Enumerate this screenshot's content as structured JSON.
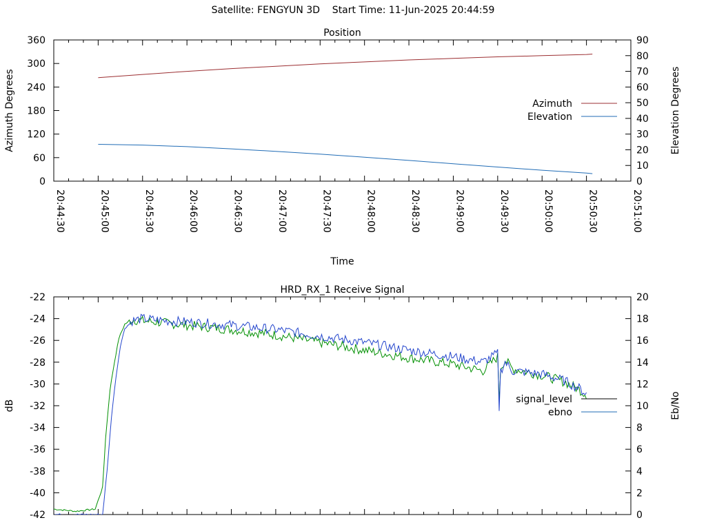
{
  "header": {
    "title": "Satellite: FENGYUN 3D    Start Time: 11-Jun-2025 20:44:59"
  },
  "colors": {
    "azimuth": "#9b2d30",
    "elevation": "#1f6bb5",
    "signal_level": "#008f00",
    "ebno": "#2244cc",
    "legend_signal_level": "#000000",
    "legend_ebno": "#1f6bb5"
  },
  "chart_data": [
    {
      "type": "line",
      "title": "Position",
      "xlabel": "Time",
      "ylabel": "Azimuth Degrees",
      "y2label": "Elevation Degrees",
      "ylim": [
        0,
        360
      ],
      "y2lim": [
        0,
        90
      ],
      "yticks": [
        0,
        60,
        120,
        180,
        240,
        300,
        360
      ],
      "y2ticks": [
        0,
        10,
        20,
        30,
        40,
        50,
        60,
        70,
        80,
        90
      ],
      "xlim": [
        "20:44:30",
        "20:51:00"
      ],
      "xticks": [
        "20:44:30",
        "20:45:00",
        "20:45:30",
        "20:46:00",
        "20:46:30",
        "20:47:00",
        "20:47:30",
        "20:48:00",
        "20:48:30",
        "20:49:00",
        "20:49:30",
        "20:50:00",
        "20:50:30",
        "20:51:00"
      ],
      "legend_position": "center-right",
      "series": [
        {
          "name": "Azimuth",
          "axis": "left",
          "color_key": "azimuth",
          "x": [
            "20:45:00",
            "20:45:30",
            "20:46:00",
            "20:46:30",
            "20:47:00",
            "20:47:30",
            "20:48:00",
            "20:48:30",
            "20:49:00",
            "20:49:30",
            "20:50:00",
            "20:50:30",
            "20:50:34"
          ],
          "y": [
            264,
            272,
            280,
            287,
            293,
            299,
            304,
            309,
            313,
            317,
            320,
            323,
            324
          ]
        },
        {
          "name": "Elevation",
          "axis": "right",
          "color_key": "elevation",
          "x": [
            "20:45:00",
            "20:45:30",
            "20:46:00",
            "20:46:30",
            "20:47:00",
            "20:47:30",
            "20:48:00",
            "20:48:30",
            "20:49:00",
            "20:49:30",
            "20:50:00",
            "20:50:30",
            "20:50:34"
          ],
          "y": [
            23.5,
            23,
            22,
            20.6,
            19,
            17.2,
            15.3,
            13.2,
            11.1,
            9,
            7,
            5.2,
            4.8
          ]
        }
      ]
    },
    {
      "type": "line",
      "title": "HRD_RX_1 Receive Signal",
      "ylabel": "dB",
      "y2label": "Eb/No",
      "ylim": [
        -42,
        -22
      ],
      "y2lim": [
        0,
        20
      ],
      "yticks": [
        -42,
        -40,
        -38,
        -36,
        -34,
        -32,
        -30,
        -28,
        -26,
        -24,
        -22
      ],
      "y2ticks": [
        0,
        2,
        4,
        6,
        8,
        10,
        12,
        14,
        16,
        18,
        20
      ],
      "xlim": [
        "20:44:30",
        "20:51:00"
      ],
      "legend_position": "center-right",
      "series": [
        {
          "name": "signal_level",
          "axis": "left",
          "color_key": "signal_level",
          "legend_color_key": "legend_signal_level",
          "x": [
            "20:44:30",
            "20:44:45",
            "20:44:58",
            "20:45:03",
            "20:45:05",
            "20:45:08",
            "20:45:11",
            "20:45:14",
            "20:45:18",
            "20:45:23",
            "20:45:30",
            "20:45:45",
            "20:46:00",
            "20:46:30",
            "20:47:00",
            "20:47:30",
            "20:48:00",
            "20:48:30",
            "20:49:00",
            "20:49:20",
            "20:49:30",
            "20:49:31",
            "20:49:32",
            "20:49:35",
            "20:49:40",
            "20:50:00",
            "20:50:15",
            "20:50:25",
            "20:50:30"
          ],
          "y": [
            -41.5,
            -41.7,
            -41.5,
            -39.5,
            -35,
            -30.5,
            -28,
            -25.8,
            -24.5,
            -24.1,
            -24.2,
            -24.4,
            -24.6,
            -25,
            -25.5,
            -26.2,
            -26.9,
            -27.6,
            -28.2,
            -28.8,
            -27.5,
            -31.5,
            -28.5,
            -27.8,
            -28.6,
            -29.2,
            -29.8,
            -30.5,
            -31
          ]
        },
        {
          "name": "ebno",
          "axis": "right",
          "color_key": "ebno",
          "legend_color_key": "legend_ebno",
          "x": [
            "20:44:30",
            "20:45:03",
            "20:45:06",
            "20:45:09",
            "20:45:12",
            "20:45:15",
            "20:45:18",
            "20:45:23",
            "20:45:30",
            "20:45:45",
            "20:46:00",
            "20:46:30",
            "20:47:00",
            "20:47:30",
            "20:48:00",
            "20:48:30",
            "20:49:00",
            "20:49:20",
            "20:49:30",
            "20:49:31",
            "20:49:32",
            "20:49:35",
            "20:49:40",
            "20:50:00",
            "20:50:15",
            "20:50:25",
            "20:50:30"
          ],
          "y": [
            0,
            0,
            4,
            9,
            12.6,
            15.5,
            17.1,
            17.8,
            18,
            17.8,
            17.7,
            17.4,
            17,
            16.4,
            15.8,
            15.1,
            14.5,
            14,
            14.8,
            9.8,
            13.2,
            14,
            13.2,
            12.9,
            12.3,
            11.6,
            11.1
          ]
        }
      ]
    }
  ]
}
